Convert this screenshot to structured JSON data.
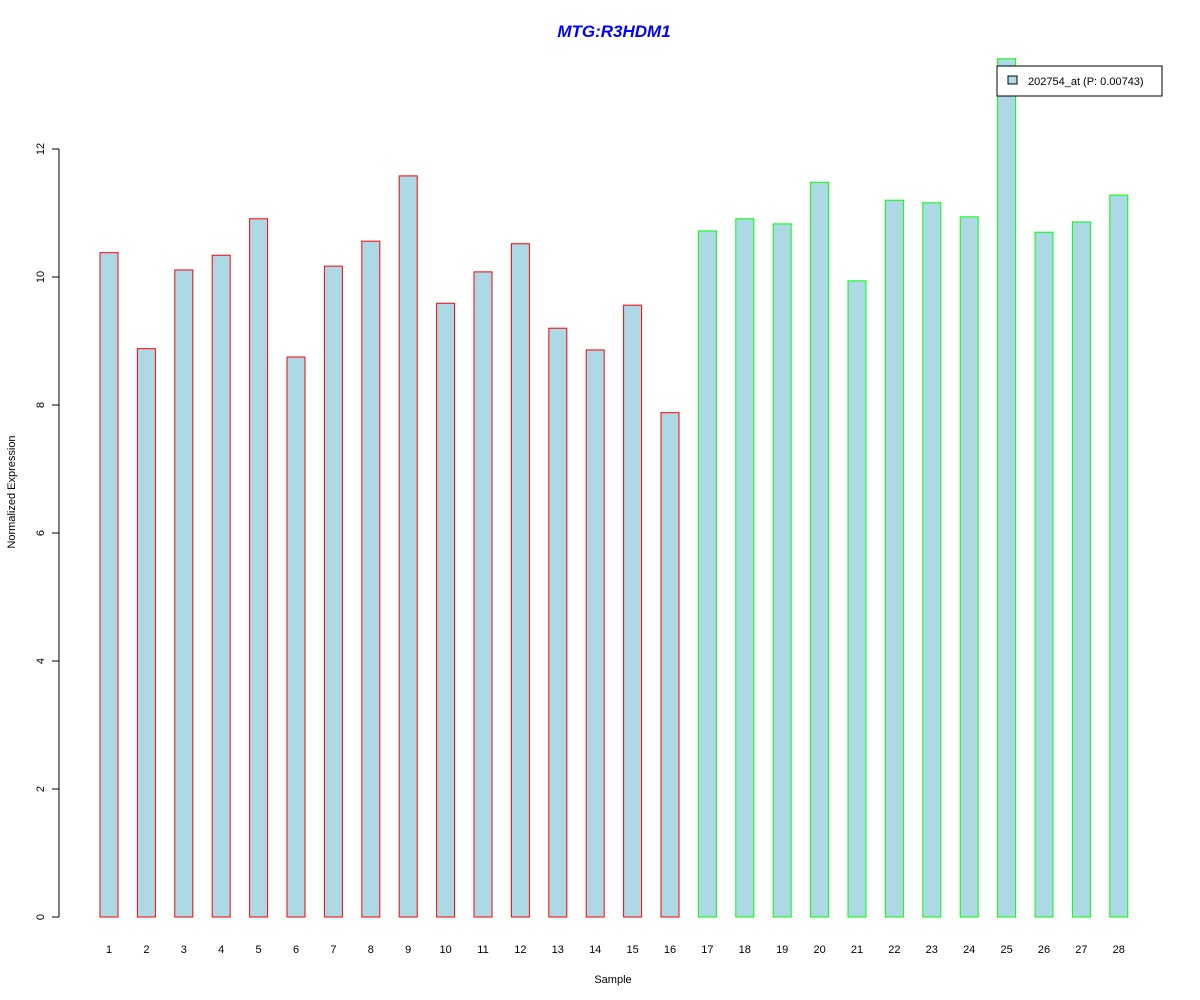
{
  "chart_data": {
    "type": "bar",
    "title": "MTG:R3HDM1",
    "xlabel": "Sample",
    "ylabel": "Normalized Expression",
    "ylim": [
      0,
      13.5
    ],
    "yticks": [
      0,
      2,
      4,
      6,
      8,
      10,
      12
    ],
    "categories": [
      "1",
      "2",
      "3",
      "4",
      "5",
      "6",
      "7",
      "8",
      "9",
      "10",
      "11",
      "12",
      "13",
      "14",
      "15",
      "16",
      "17",
      "18",
      "19",
      "20",
      "21",
      "22",
      "23",
      "24",
      "25",
      "26",
      "27",
      "28"
    ],
    "values": [
      10.38,
      8.88,
      10.11,
      10.34,
      10.91,
      8.75,
      10.17,
      10.56,
      11.58,
      9.59,
      10.08,
      10.52,
      9.2,
      8.86,
      9.56,
      7.88,
      10.72,
      10.91,
      10.83,
      11.48,
      9.94,
      11.2,
      11.16,
      10.94,
      13.41,
      10.7,
      10.86,
      11.28
    ],
    "groups": [
      "red",
      "red",
      "red",
      "red",
      "red",
      "red",
      "red",
      "red",
      "red",
      "red",
      "red",
      "red",
      "red",
      "red",
      "red",
      "red",
      "green",
      "green",
      "green",
      "green",
      "green",
      "green",
      "green",
      "green",
      "green",
      "green",
      "green",
      "green"
    ],
    "legend": {
      "label": "202754_at (P: 0.00743)",
      "position": "top-right"
    },
    "colors": {
      "fill": "#add8e6",
      "red": "#ff0000",
      "green": "#00ff00",
      "title": "#0000ff"
    },
    "grid": false
  }
}
